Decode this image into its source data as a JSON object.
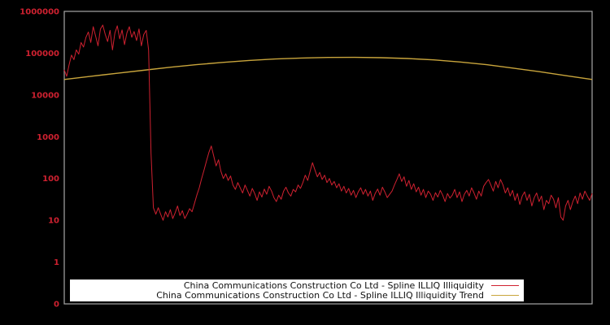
{
  "figure": {
    "background": "#000000",
    "plot_border_color": "#a6a6a6"
  },
  "chart_data": {
    "type": "line",
    "title": "",
    "xlabel": "",
    "ylabel": "",
    "grid": false,
    "x_axis": {
      "tick_labels": []
    },
    "y_axis": {
      "scale": "log",
      "tick_labels": [
        "1000000",
        "100000",
        "10000",
        "1000",
        "100",
        "10",
        "1",
        "0"
      ],
      "tick_color": "#cf2130",
      "range": [
        0,
        1000000
      ]
    },
    "legend": {
      "position": "bottom-inside",
      "background": "#ffffff",
      "text_color": "#111111"
    },
    "series": [
      {
        "name": "China Communications Construction Co Ltd - Spline ILLIQ Illiquidity",
        "color": "#cf2130",
        "values": [
          40000,
          28000,
          52000,
          90000,
          70000,
          120000,
          95000,
          180000,
          140000,
          240000,
          320000,
          180000,
          430000,
          260000,
          150000,
          380000,
          470000,
          280000,
          190000,
          350000,
          120000,
          300000,
          450000,
          220000,
          360000,
          160000,
          310000,
          430000,
          240000,
          330000,
          200000,
          380000,
          150000,
          280000,
          350000,
          120000,
          400,
          20,
          14,
          20,
          14,
          10,
          16,
          12,
          18,
          11,
          15,
          22,
          13,
          17,
          11,
          14,
          19,
          16,
          25,
          40,
          60,
          100,
          160,
          260,
          420,
          600,
          350,
          200,
          280,
          150,
          100,
          130,
          90,
          115,
          70,
          55,
          80,
          60,
          45,
          70,
          52,
          38,
          58,
          44,
          30,
          48,
          36,
          56,
          42,
          65,
          50,
          35,
          28,
          40,
          32,
          50,
          62,
          45,
          38,
          55,
          48,
          70,
          58,
          80,
          120,
          90,
          150,
          240,
          160,
          110,
          140,
          95,
          120,
          80,
          100,
          70,
          85,
          60,
          75,
          50,
          65,
          45,
          58,
          40,
          52,
          35,
          48,
          60,
          42,
          55,
          38,
          50,
          30,
          44,
          56,
          40,
          62,
          48,
          35,
          42,
          50,
          70,
          95,
          130,
          85,
          110,
          65,
          90,
          55,
          75,
          48,
          62,
          40,
          55,
          35,
          50,
          42,
          30,
          46,
          36,
          52,
          40,
          28,
          44,
          34,
          40,
          55,
          35,
          48,
          28,
          42,
          52,
          38,
          60,
          45,
          32,
          50,
          38,
          65,
          80,
          95,
          70,
          50,
          85,
          60,
          95,
          70,
          45,
          60,
          38,
          52,
          30,
          44,
          24,
          38,
          48,
          30,
          42,
          22,
          35,
          45,
          28,
          38,
          18,
          30,
          25,
          40,
          32,
          20,
          35,
          12,
          10,
          22,
          30,
          18,
          28,
          38,
          25,
          45,
          32,
          50,
          38,
          30,
          44
        ]
      },
      {
        "name": "China Communications Construction Co Ltd - Spline ILLIQ Illiquidity Trend",
        "color": "#c9a53c",
        "x_frac": [
          0.0,
          0.05,
          0.1,
          0.15,
          0.2,
          0.25,
          0.3,
          0.35,
          0.4,
          0.45,
          0.5,
          0.55,
          0.6,
          0.65,
          0.7,
          0.75,
          0.8,
          0.85,
          0.9,
          0.95,
          1.0
        ],
        "values": [
          23500,
          28000,
          33000,
          39000,
          46000,
          53000,
          60000,
          67000,
          72500,
          76500,
          79000,
          79500,
          78000,
          74500,
          69000,
          61500,
          53000,
          44000,
          36000,
          29000,
          23500
        ]
      }
    ]
  }
}
